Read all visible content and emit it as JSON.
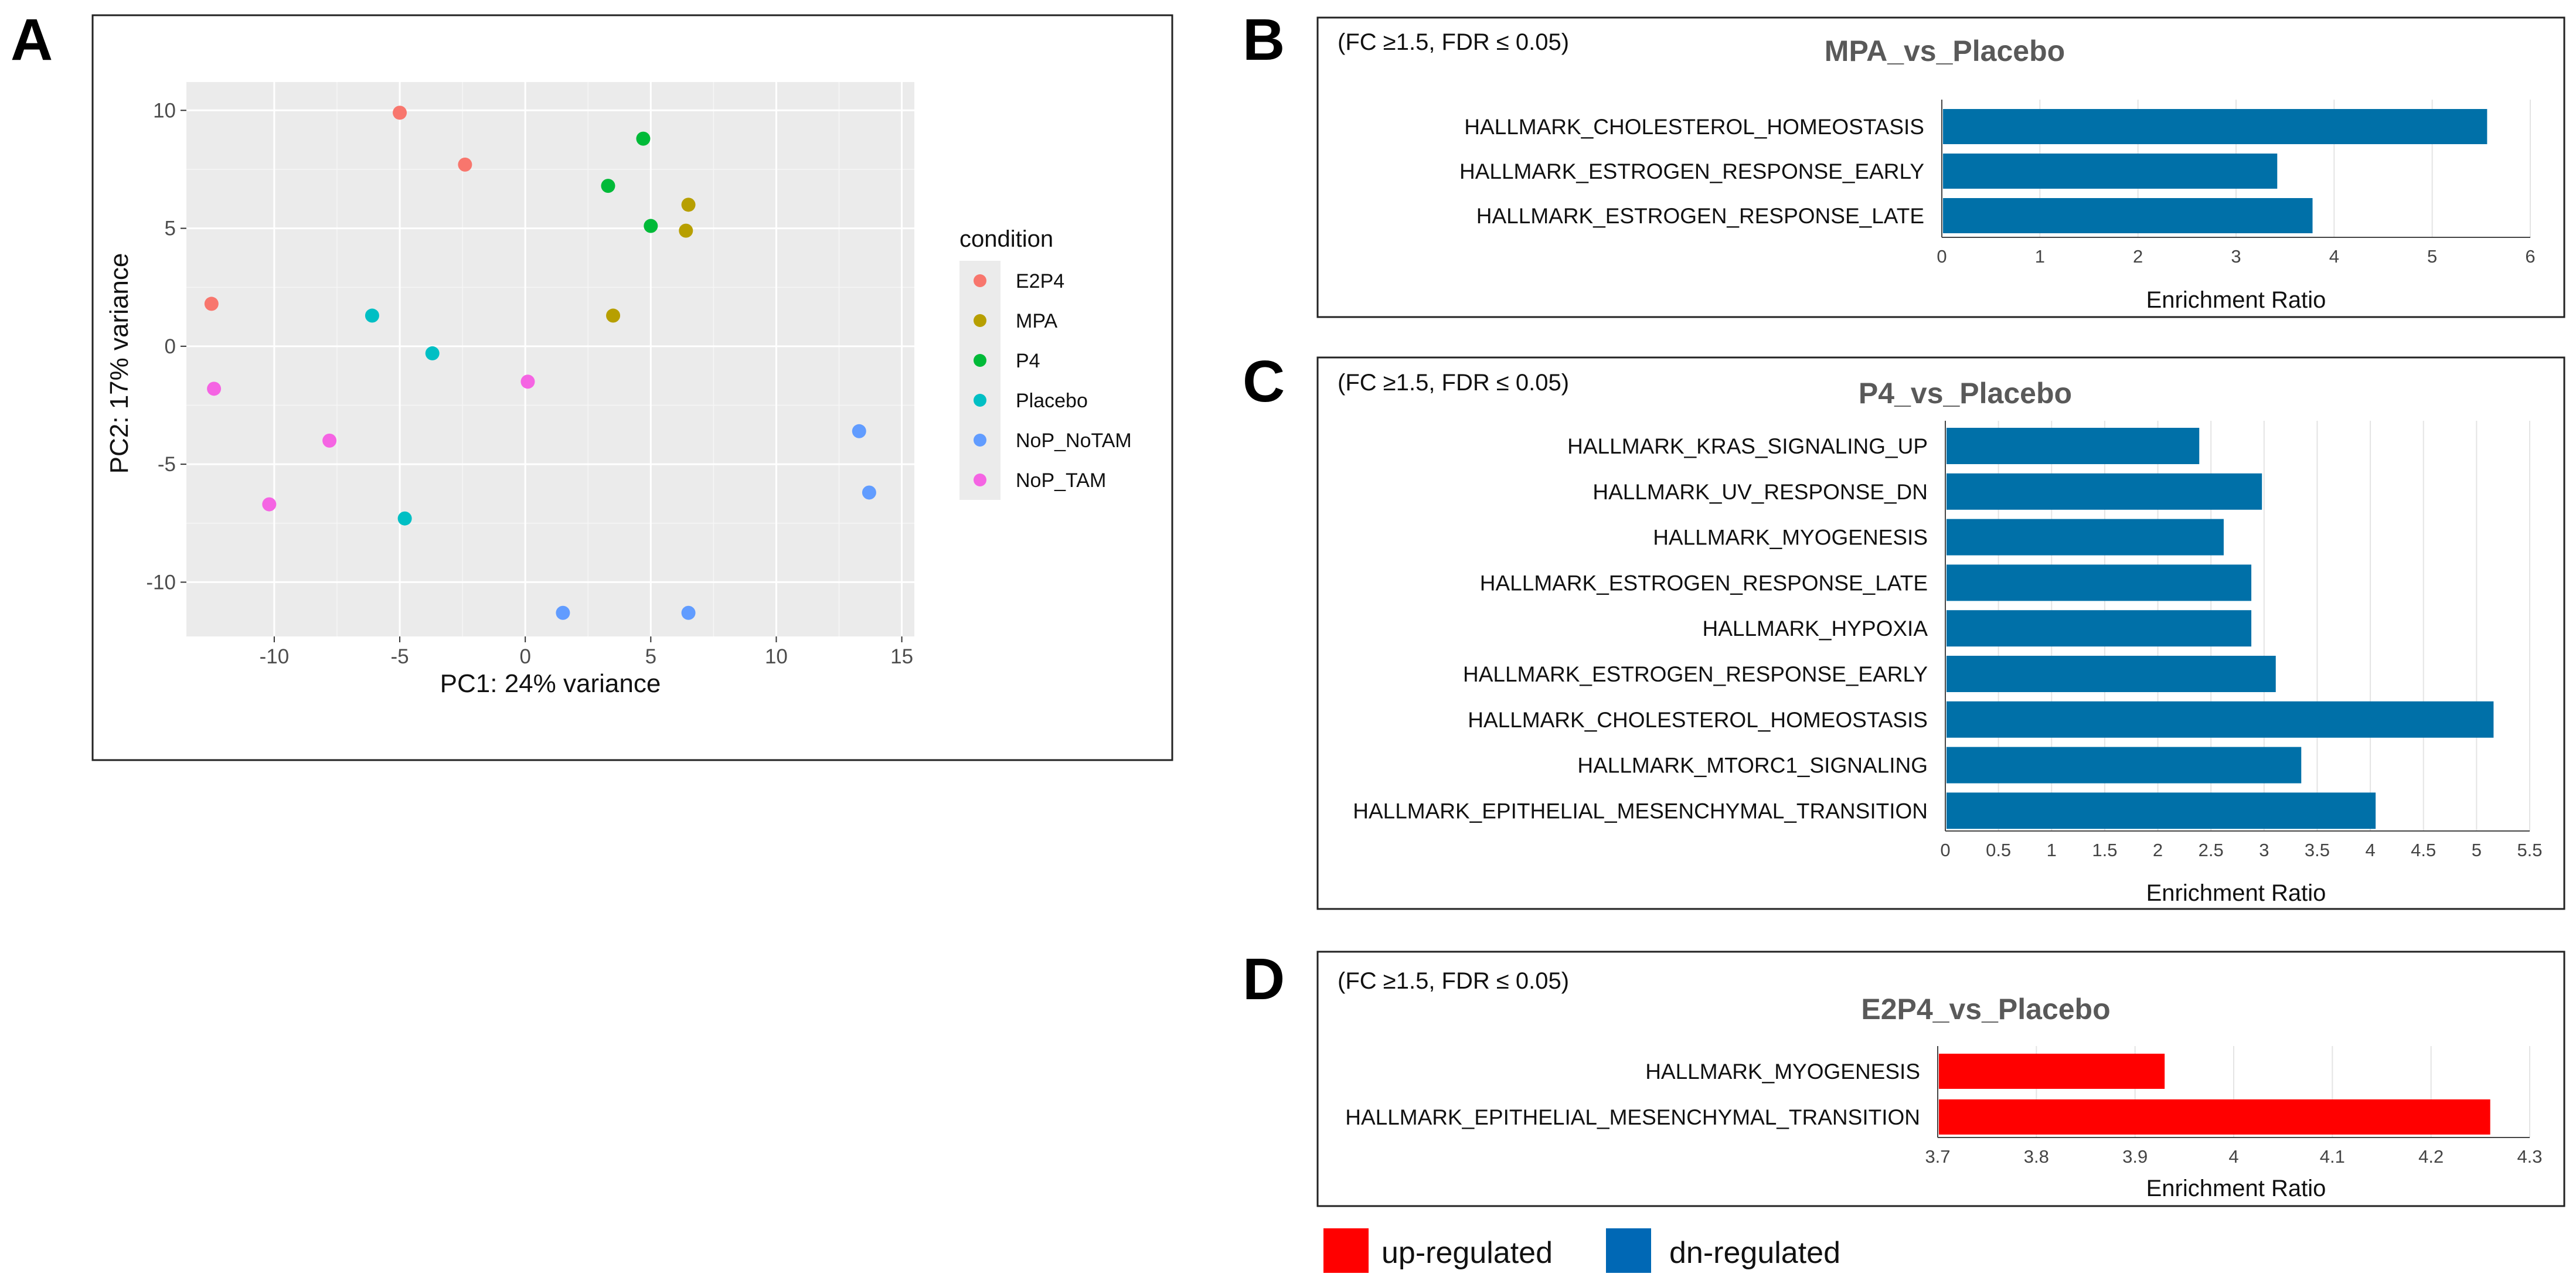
{
  "panel_letters": {
    "a": "A",
    "b": "B",
    "c": "C",
    "d": "D"
  },
  "colors": {
    "up": "#ff0000",
    "dn": "#0070a8",
    "legend_dn": "#0068b5"
  },
  "bottom_legend": {
    "up_label": "up-regulated",
    "dn_label": "dn-regulated"
  },
  "chart_data": [
    {
      "id": "A",
      "type": "scatter",
      "title": "",
      "xlabel": "PC1: 24% variance",
      "ylabel": "PC2: 17% variance",
      "xlim": [
        -13.5,
        15.5
      ],
      "ylim": [
        -12.3,
        11.2
      ],
      "xticks": [
        -10,
        -5,
        0,
        5,
        10,
        15
      ],
      "xtick_labels": [
        "-10",
        "-5",
        "0",
        "5",
        "10",
        "15"
      ],
      "yticks": [
        -10,
        -5,
        0,
        5,
        10
      ],
      "ytick_labels": [
        "-10",
        "-5",
        "0",
        "5",
        "10"
      ],
      "legend_title": "condition",
      "series": [
        {
          "name": "E2P4",
          "color": "#f8766d",
          "points": [
            [
              -5.0,
              9.9
            ],
            [
              -2.4,
              7.7
            ],
            [
              -12.5,
              1.8
            ]
          ]
        },
        {
          "name": "MPA",
          "color": "#b79f00",
          "points": [
            [
              6.5,
              6.0
            ],
            [
              6.4,
              4.9
            ],
            [
              3.5,
              1.3
            ]
          ]
        },
        {
          "name": "P4",
          "color": "#00ba38",
          "points": [
            [
              4.7,
              8.8
            ],
            [
              3.3,
              6.8
            ],
            [
              5.0,
              5.1
            ]
          ]
        },
        {
          "name": "Placebo",
          "color": "#00bfc4",
          "points": [
            [
              -6.1,
              1.3
            ],
            [
              -3.7,
              -0.3
            ],
            [
              -4.8,
              -7.3
            ]
          ]
        },
        {
          "name": "NoP_NoTAM",
          "color": "#619cff",
          "points": [
            [
              13.3,
              -3.6
            ],
            [
              13.7,
              -6.2
            ],
            [
              1.5,
              -11.3
            ],
            [
              6.5,
              -11.3
            ]
          ]
        },
        {
          "name": "NoP_TAM",
          "color": "#f564e3",
          "points": [
            [
              -12.4,
              -1.8
            ],
            [
              0.1,
              -1.5
            ],
            [
              -7.8,
              -4.0
            ],
            [
              -10.2,
              -6.7
            ]
          ]
        }
      ]
    },
    {
      "id": "B",
      "type": "bar",
      "orientation": "horizontal",
      "note": "(FC ≥1.5, FDR ≤ 0.05)",
      "title": "MPA_vs_Placebo",
      "xlabel": "Enrichment Ratio",
      "xlim": [
        0,
        6
      ],
      "xticks": [
        0,
        1,
        2,
        3,
        4,
        5,
        6
      ],
      "xtick_labels": [
        "0",
        "1",
        "2",
        "3",
        "4",
        "5",
        "6"
      ],
      "direction": "dn",
      "categories": [
        "HALLMARK_CHOLESTEROL_HOMEOSTASIS",
        "HALLMARK_ESTROGEN_RESPONSE_EARLY",
        "HALLMARK_ESTROGEN_RESPONSE_LATE"
      ],
      "values": [
        5.56,
        3.42,
        3.78
      ]
    },
    {
      "id": "C",
      "type": "bar",
      "orientation": "horizontal",
      "note": "(FC ≥1.5, FDR ≤ 0.05)",
      "title": "P4_vs_Placebo",
      "xlabel": "Enrichment Ratio",
      "xlim": [
        0,
        5.5
      ],
      "xticks": [
        0,
        0.5,
        1,
        1.5,
        2,
        2.5,
        3,
        3.5,
        4,
        4.5,
        5,
        5.5
      ],
      "xtick_labels": [
        "0",
        "0.5",
        "1",
        "1.5",
        "2",
        "2.5",
        "3",
        "3.5",
        "4",
        "4.5",
        "5",
        "5.5"
      ],
      "direction": "dn",
      "categories": [
        "HALLMARK_KRAS_SIGNALING_UP",
        "HALLMARK_UV_RESPONSE_DN",
        "HALLMARK_MYOGENESIS",
        "HALLMARK_ESTROGEN_RESPONSE_LATE",
        "HALLMARK_HYPOXIA",
        "HALLMARK_ESTROGEN_RESPONSE_EARLY",
        "HALLMARK_CHOLESTEROL_HOMEOSTASIS",
        "HALLMARK_MTORC1_SIGNALING",
        "HALLMARK_EPITHELIAL_MESENCHYMAL_TRANSITION"
      ],
      "values": [
        2.39,
        2.98,
        2.62,
        2.88,
        2.88,
        3.11,
        5.16,
        3.35,
        4.05
      ]
    },
    {
      "id": "D",
      "type": "bar",
      "orientation": "horizontal",
      "note": "(FC ≥1.5, FDR ≤ 0.05)",
      "title": "E2P4_vs_Placebo",
      "xlabel": "Enrichment Ratio",
      "xlim": [
        3.7,
        4.3
      ],
      "xticks": [
        3.7,
        3.8,
        3.9,
        4,
        4.1,
        4.2,
        4.3
      ],
      "xtick_labels": [
        "3.7",
        "3.8",
        "3.9",
        "4",
        "4.1",
        "4.2",
        "4.3"
      ],
      "direction": "up",
      "categories": [
        "HALLMARK_MYOGENESIS",
        "HALLMARK_EPITHELIAL_MESENCHYMAL_TRANSITION"
      ],
      "values": [
        3.93,
        4.26
      ]
    }
  ]
}
